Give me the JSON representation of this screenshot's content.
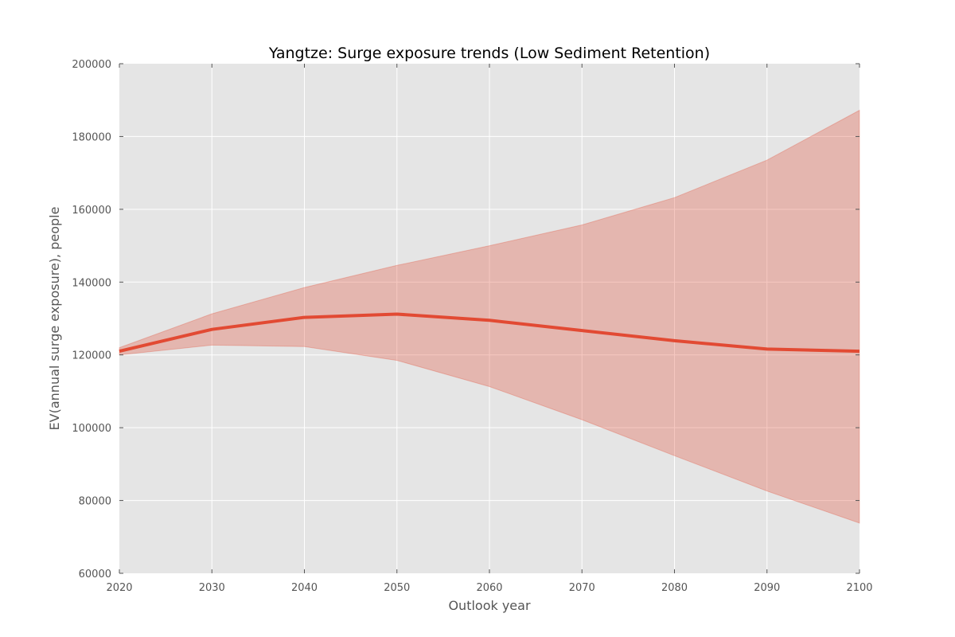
{
  "chart_data": {
    "type": "line",
    "title": "Yangtze: Surge exposure trends (Low Sediment Retention)",
    "xlabel": "Outlook year",
    "ylabel": "EV(annual surge exposure), people",
    "xlim": [
      2020,
      2100
    ],
    "ylim": [
      60000,
      200000
    ],
    "x_ticks": [
      2020,
      2030,
      2040,
      2050,
      2060,
      2070,
      2080,
      2090,
      2100
    ],
    "y_ticks": [
      60000,
      80000,
      100000,
      120000,
      140000,
      160000,
      180000,
      200000
    ],
    "grid": true,
    "x": [
      2020,
      2030,
      2040,
      2050,
      2060,
      2070,
      2080,
      2090,
      2100
    ],
    "series": [
      {
        "values": [
          121000,
          127000,
          130300,
          131200,
          129500,
          126700,
          123900,
          121600,
          121000
        ],
        "lower": [
          120000,
          122700,
          122300,
          118500,
          111300,
          102200,
          92300,
          82600,
          73800
        ],
        "upper": [
          122000,
          131300,
          138500,
          144600,
          150000,
          155700,
          163200,
          173500,
          187200
        ],
        "color": "#E24A33",
        "band_color": "#E24A33"
      }
    ],
    "colors": {
      "plot_background": "#E5E5E5",
      "grid": "#FFFFFF"
    }
  }
}
